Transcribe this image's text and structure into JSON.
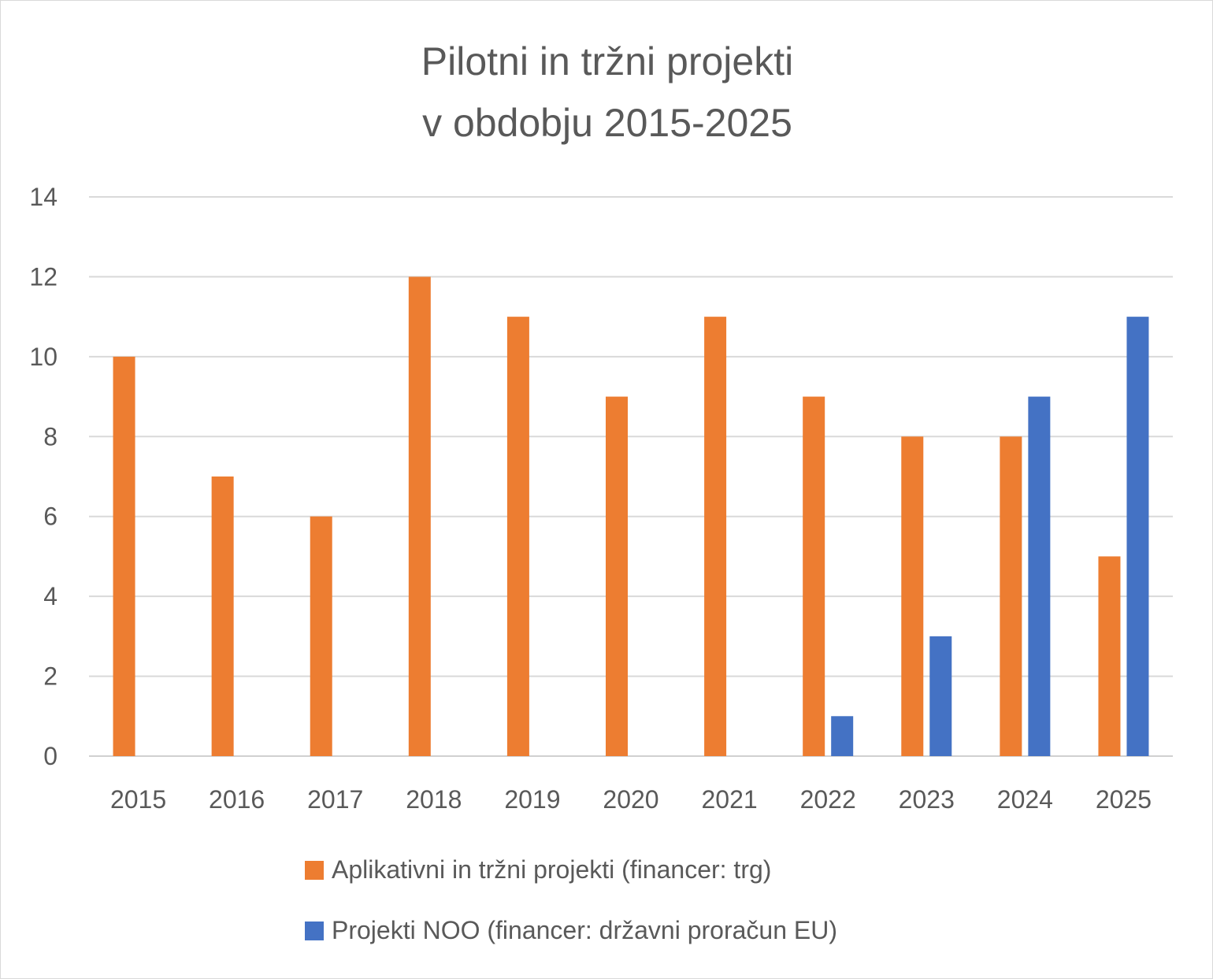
{
  "chart_data": {
    "type": "bar",
    "title": [
      "Pilotni in tržni projekti",
      "v obdobju 2015-2025"
    ],
    "categories": [
      "2015",
      "2016",
      "2017",
      "2018",
      "2019",
      "2020",
      "2021",
      "2022",
      "2023",
      "2024",
      "2025"
    ],
    "series": [
      {
        "name": "Aplikativni in tržni projekti (financer: trg)",
        "color": "#ED7D31",
        "values": [
          10,
          7,
          6,
          12,
          11,
          9,
          11,
          9,
          8,
          8,
          5
        ]
      },
      {
        "name": "Projekti NOO (financer: državni proračun EU)",
        "color": "#4472C4",
        "values": [
          0,
          0,
          0,
          0,
          0,
          0,
          0,
          1,
          3,
          9,
          11
        ]
      }
    ],
    "ylim": [
      0,
      14
    ],
    "yticks": [
      0,
      2,
      4,
      6,
      8,
      10,
      12,
      14
    ],
    "grid": true,
    "legend": "bottom",
    "xlabel": "",
    "ylabel": ""
  }
}
